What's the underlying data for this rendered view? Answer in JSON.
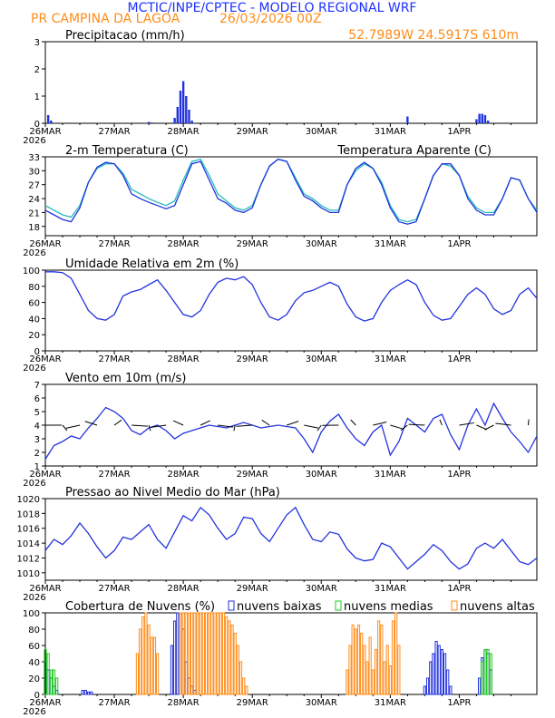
{
  "header": {
    "title": "MCTIC/INPE/CPTEC - MODELO REGIONAL WRF",
    "location": "PR CAMPINA DA LAGOA",
    "run_date": "26/03/2026 00Z",
    "coords": "52.7989W 24.5917S 610m"
  },
  "colors": {
    "title": "#1e32ff",
    "orange": "#ff8c1a",
    "blue": "#2233dd",
    "cyan": "#22bbbb",
    "green": "#22cc22"
  },
  "x_axis": {
    "days": [
      "26MAR",
      "27MAR",
      "28MAR",
      "29MAR",
      "30MAR",
      "31MAR",
      "1APR"
    ],
    "year": "2026",
    "hours_total": 171
  },
  "chart_data": [
    {
      "type": "bar",
      "title": "Precipitacao (mm/h)",
      "ylim": [
        0,
        3
      ],
      "yticks": [
        0,
        1,
        2,
        3
      ],
      "x_hours": [
        1,
        2,
        36,
        37,
        45,
        46,
        47,
        48,
        49,
        50,
        51,
        126,
        150,
        151,
        152,
        153,
        154
      ],
      "values": [
        0.3,
        0.1,
        0.05,
        0.03,
        0.2,
        0.6,
        1.2,
        1.55,
        1.0,
        0.5,
        0.1,
        0.25,
        0.15,
        0.35,
        0.35,
        0.3,
        0.1
      ]
    },
    {
      "type": "line",
      "title": "2-m Temperatura (C)",
      "legend": "Temperatura Aparente (C)",
      "ylim": [
        16,
        33
      ],
      "yticks": [
        18,
        21,
        24,
        27,
        30,
        33
      ],
      "series": [
        {
          "name": "2-m Temperatura (C)",
          "x": [
            0,
            3,
            6,
            9,
            12,
            15,
            18,
            21,
            24,
            27,
            30,
            33,
            36,
            39,
            42,
            45,
            48,
            51,
            54,
            57,
            60,
            63,
            66,
            69,
            72,
            75,
            78,
            81,
            84,
            87,
            90,
            93,
            96,
            99,
            102,
            105,
            108,
            111,
            114,
            117,
            120,
            123,
            126,
            129,
            132,
            135,
            138,
            141,
            144,
            147,
            150,
            153,
            156,
            159,
            162,
            165,
            168,
            171
          ],
          "values": [
            21.5,
            20.5,
            19.5,
            19.0,
            22.0,
            27.5,
            30.8,
            31.8,
            31.5,
            29.0,
            25.0,
            24.0,
            23.2,
            22.5,
            21.8,
            22.5,
            27.0,
            31.5,
            32.0,
            28.0,
            24.0,
            23.0,
            21.5,
            21.0,
            22.0,
            27.0,
            31.0,
            32.5,
            32.0,
            28.0,
            24.5,
            23.5,
            22.0,
            21.0,
            21.0,
            27.0,
            30.5,
            31.8,
            30.5,
            27.0,
            22.0,
            19.0,
            18.5,
            19.0,
            24.0,
            29.0,
            31.5,
            31.5,
            29.0,
            24.0,
            21.5,
            20.5,
            20.5,
            24.0,
            28.5,
            28.0,
            24.0,
            21.0
          ]
        },
        {
          "name": "Temperatura Aparente (C)",
          "x": [
            0,
            3,
            6,
            9,
            12,
            15,
            18,
            21,
            24,
            27,
            30,
            33,
            36,
            39,
            42,
            45,
            48,
            51,
            54,
            57,
            60,
            63,
            66,
            69,
            72,
            75,
            78,
            81,
            84,
            87,
            90,
            93,
            96,
            99,
            102,
            105,
            108,
            111,
            114,
            117,
            120,
            123,
            126,
            129,
            132,
            135,
            138,
            141,
            144,
            147,
            150,
            153,
            156,
            159,
            162,
            165,
            168,
            171
          ],
          "values": [
            22.5,
            21.5,
            20.5,
            20.0,
            22.5,
            27.5,
            30.5,
            31.5,
            31.5,
            29.5,
            26.0,
            25.0,
            24.0,
            23.2,
            22.5,
            23.5,
            28.0,
            32.0,
            32.5,
            29.0,
            25.0,
            23.5,
            22.0,
            21.5,
            22.5,
            27.0,
            31.0,
            32.5,
            32.0,
            28.5,
            25.0,
            24.0,
            22.5,
            21.5,
            21.5,
            27.0,
            30.0,
            31.5,
            30.5,
            27.5,
            22.5,
            19.5,
            19.0,
            19.5,
            24.0,
            29.0,
            31.5,
            31.0,
            29.0,
            24.5,
            22.0,
            21.0,
            21.0,
            24.0,
            28.5,
            28.0,
            24.0,
            21.5
          ]
        }
      ]
    },
    {
      "type": "line",
      "title": "Umidade Relativa em 2m (%)",
      "ylim": [
        0,
        100
      ],
      "yticks": [
        0,
        20,
        40,
        60,
        80,
        100
      ],
      "series": [
        {
          "name": "Umidade Relativa",
          "x": [
            0,
            3,
            6,
            9,
            12,
            15,
            18,
            21,
            24,
            27,
            30,
            33,
            36,
            39,
            42,
            45,
            48,
            51,
            54,
            57,
            60,
            63,
            66,
            69,
            72,
            75,
            78,
            81,
            84,
            87,
            90,
            93,
            96,
            99,
            102,
            105,
            108,
            111,
            114,
            117,
            120,
            123,
            126,
            129,
            132,
            135,
            138,
            141,
            144,
            147,
            150,
            153,
            156,
            159,
            162,
            165,
            168,
            171
          ],
          "values": [
            98,
            98,
            97,
            90,
            70,
            50,
            40,
            38,
            45,
            68,
            73,
            76,
            82,
            88,
            75,
            60,
            45,
            42,
            50,
            70,
            85,
            90,
            88,
            92,
            82,
            60,
            42,
            38,
            45,
            62,
            72,
            75,
            80,
            85,
            80,
            58,
            42,
            37,
            40,
            60,
            75,
            82,
            88,
            82,
            60,
            44,
            38,
            40,
            55,
            70,
            78,
            70,
            52,
            45,
            50,
            70,
            78,
            65
          ]
        }
      ]
    },
    {
      "type": "line",
      "title": "Vento em 10m (m/s)",
      "ylim": [
        1,
        7
      ],
      "yticks": [
        1,
        2,
        3,
        4,
        5,
        6,
        7
      ],
      "series": [
        {
          "name": "Vento em 10m",
          "x": [
            0,
            3,
            6,
            9,
            12,
            15,
            18,
            21,
            24,
            27,
            30,
            33,
            36,
            39,
            42,
            45,
            48,
            51,
            54,
            57,
            60,
            63,
            66,
            69,
            72,
            75,
            78,
            81,
            84,
            87,
            90,
            93,
            96,
            99,
            102,
            105,
            108,
            111,
            114,
            117,
            120,
            123,
            126,
            129,
            132,
            135,
            138,
            141,
            144,
            147,
            150,
            153,
            156,
            159,
            162,
            165,
            168,
            171
          ],
          "values": [
            1.5,
            2.5,
            2.8,
            3.2,
            3.0,
            3.8,
            4.5,
            5.3,
            5.0,
            4.5,
            3.6,
            3.3,
            3.8,
            4.0,
            3.6,
            3.0,
            3.4,
            3.6,
            3.8,
            4.0,
            3.9,
            3.8,
            4.0,
            4.2,
            4.0,
            3.8,
            3.9,
            4.0,
            3.9,
            3.8,
            3.0,
            2.0,
            3.5,
            4.3,
            4.8,
            3.8,
            3.0,
            2.5,
            3.5,
            4.0,
            1.8,
            2.8,
            4.5,
            4.0,
            3.5,
            4.5,
            4.8,
            3.3,
            2.2,
            4.0,
            5.2,
            4.0,
            5.6,
            4.5,
            3.5,
            2.8,
            2.0,
            3.2
          ]
        }
      ]
    },
    {
      "type": "line",
      "title": "Pressao ao Nivel Medio do Mar (hPa)",
      "ylim": [
        1009,
        1020
      ],
      "yticks": [
        1010,
        1012,
        1014,
        1016,
        1018,
        1020
      ],
      "series": [
        {
          "name": "Pressao ao Nivel Medio do Mar",
          "x": [
            0,
            3,
            6,
            9,
            12,
            15,
            18,
            21,
            24,
            27,
            30,
            33,
            36,
            39,
            42,
            45,
            48,
            51,
            54,
            57,
            60,
            63,
            66,
            69,
            72,
            75,
            78,
            81,
            84,
            87,
            90,
            93,
            96,
            99,
            102,
            105,
            108,
            111,
            114,
            117,
            120,
            123,
            126,
            129,
            132,
            135,
            138,
            141,
            144,
            147,
            150,
            153,
            156,
            159,
            162,
            165,
            168,
            171
          ],
          "values": [
            1013.0,
            1014.5,
            1013.8,
            1015.0,
            1016.7,
            1015.3,
            1013.5,
            1012.0,
            1013.0,
            1014.8,
            1014.5,
            1015.5,
            1016.5,
            1014.5,
            1013.3,
            1015.5,
            1017.7,
            1017.0,
            1018.8,
            1017.8,
            1016.0,
            1014.5,
            1015.3,
            1017.5,
            1017.3,
            1015.3,
            1014.2,
            1016.0,
            1017.8,
            1018.8,
            1016.5,
            1014.5,
            1014.2,
            1015.5,
            1015.2,
            1013.2,
            1012.0,
            1011.6,
            1011.8,
            1014.0,
            1013.5,
            1012.0,
            1010.5,
            1011.5,
            1012.5,
            1013.8,
            1013.0,
            1011.5,
            1010.5,
            1011.2,
            1013.3,
            1014.0,
            1013.3,
            1014.5,
            1013.0,
            1011.5,
            1011.1,
            1012.0
          ]
        }
      ]
    },
    {
      "type": "bar",
      "title": "Cobertura de Nuvens (%)",
      "ylim": [
        0,
        100
      ],
      "yticks": [
        0,
        20,
        40,
        60,
        80,
        100
      ],
      "legend": [
        "nuvens baixas",
        "nuvens medias",
        "nuvens altas"
      ],
      "series": [
        {
          "name": "nuvens baixas",
          "x_hours": [
            0,
            1,
            2,
            3,
            4,
            13,
            14,
            15,
            16,
            44,
            45,
            46,
            47,
            48,
            49,
            50,
            51,
            52,
            132,
            133,
            134,
            135,
            136,
            137,
            138,
            139,
            140,
            141,
            151,
            152,
            153,
            154,
            155
          ],
          "values": [
            40,
            30,
            20,
            10,
            5,
            5,
            5,
            3,
            3,
            60,
            90,
            100,
            100,
            80,
            40,
            20,
            10,
            5,
            10,
            20,
            40,
            50,
            65,
            60,
            55,
            50,
            30,
            10,
            20,
            45,
            55,
            50,
            30
          ]
        },
        {
          "name": "nuvens medias",
          "x_hours": [
            0,
            1,
            2,
            3,
            4,
            152,
            153,
            154,
            155
          ],
          "values": [
            55,
            50,
            30,
            30,
            20,
            40,
            55,
            55,
            50
          ]
        },
        {
          "name": "nuvens altas",
          "x_hours": [
            32,
            33,
            34,
            35,
            36,
            37,
            38,
            39,
            47,
            48,
            49,
            50,
            51,
            52,
            53,
            54,
            55,
            56,
            57,
            58,
            59,
            60,
            61,
            62,
            63,
            64,
            65,
            66,
            67,
            68,
            69,
            70,
            105,
            106,
            107,
            108,
            109,
            110,
            111,
            112,
            113,
            114,
            115,
            116,
            117,
            118,
            119,
            120,
            121,
            122,
            123
          ],
          "values": [
            50,
            80,
            95,
            100,
            85,
            70,
            70,
            50,
            100,
            100,
            100,
            100,
            100,
            100,
            100,
            100,
            100,
            100,
            100,
            100,
            100,
            100,
            100,
            100,
            95,
            90,
            85,
            75,
            60,
            40,
            20,
            10,
            30,
            60,
            85,
            80,
            85,
            75,
            60,
            40,
            70,
            30,
            55,
            90,
            85,
            40,
            60,
            35,
            90,
            100,
            60
          ]
        }
      ]
    }
  ]
}
